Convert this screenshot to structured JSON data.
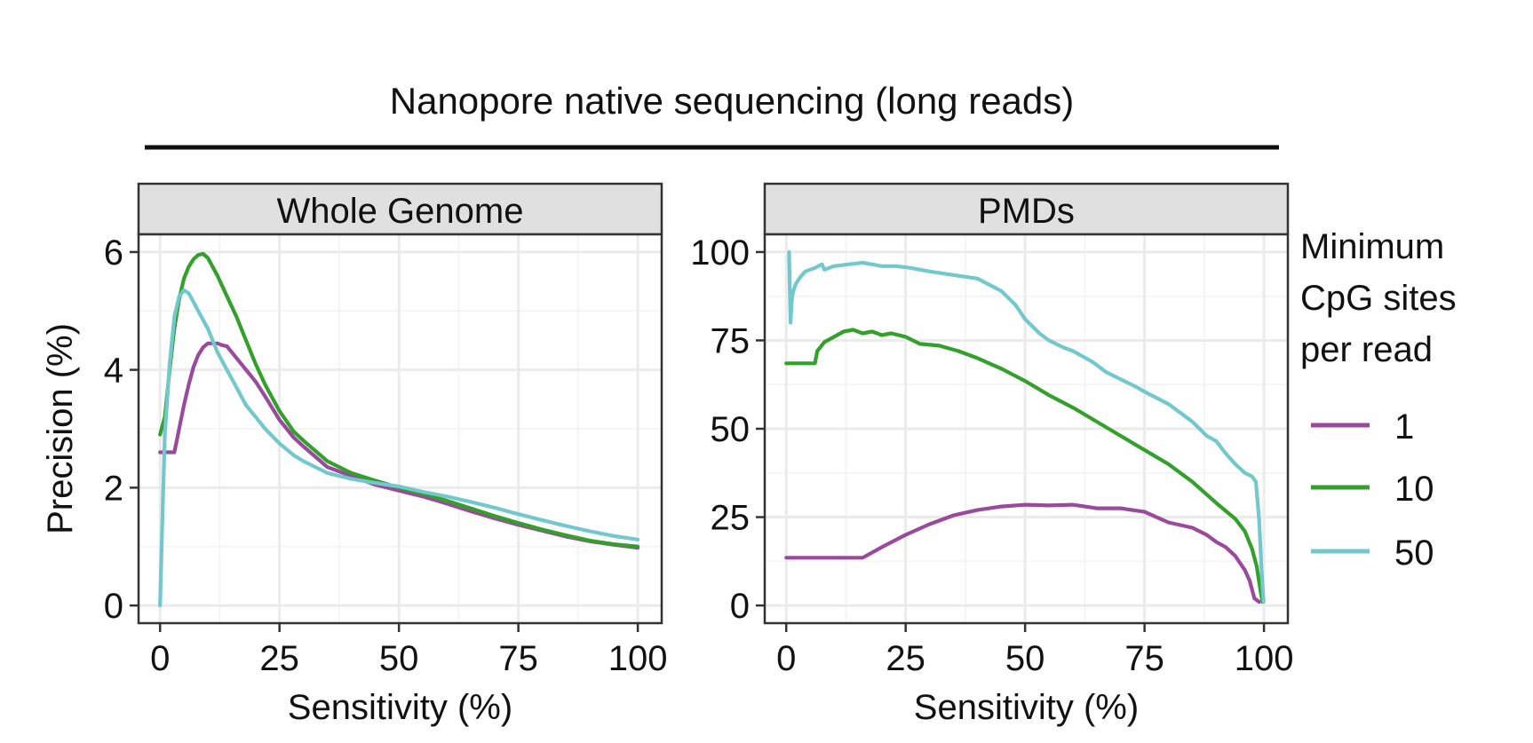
{
  "figure": {
    "supertitle": "Nanopore native sequencing (long reads)",
    "legend": {
      "title_lines": [
        "Minimum",
        "CpG sites",
        "per read"
      ],
      "items": [
        {
          "label": "1",
          "color": "#9a4a9c"
        },
        {
          "label": "10",
          "color": "#33a02c"
        },
        {
          "label": "50",
          "color": "#72c8cc"
        }
      ]
    }
  },
  "chart_data": [
    {
      "type": "line",
      "title": "Whole Genome",
      "xlabel": "Sensitivity (%)",
      "ylabel": "Precision (%)",
      "xlim": [
        -4.5,
        105
      ],
      "ylim": [
        -0.3,
        6.3
      ],
      "x_ticks": [
        0,
        25,
        50,
        75,
        100
      ],
      "x_tick_labels": [
        "0",
        "25",
        "50",
        "75",
        "100"
      ],
      "y_ticks": [
        0,
        2,
        4,
        6
      ],
      "y_tick_labels": [
        "0",
        "2",
        "4",
        "6"
      ],
      "grid": true,
      "series": [
        {
          "name": "1",
          "color": "#9a4a9c",
          "x": [
            0,
            1,
            2,
            3,
            4,
            5,
            6,
            7,
            8,
            9,
            10,
            11,
            12,
            13,
            14,
            15,
            16,
            18,
            20,
            22,
            25,
            28,
            30,
            35,
            40,
            45,
            50,
            55,
            60,
            65,
            70,
            75,
            80,
            85,
            90,
            95,
            100
          ],
          "y": [
            2.6,
            2.6,
            2.6,
            2.6,
            3.0,
            3.4,
            3.75,
            4.05,
            4.25,
            4.38,
            4.45,
            4.45,
            4.45,
            4.42,
            4.4,
            4.3,
            4.2,
            4.0,
            3.8,
            3.55,
            3.15,
            2.85,
            2.7,
            2.35,
            2.2,
            2.05,
            1.95,
            1.85,
            1.73,
            1.6,
            1.48,
            1.37,
            1.27,
            1.17,
            1.09,
            1.03,
            0.98
          ]
        },
        {
          "name": "10",
          "color": "#33a02c",
          "x": [
            0,
            1,
            2,
            3,
            4,
            5,
            6,
            7,
            8,
            9,
            10,
            11,
            12,
            14,
            16,
            18,
            20,
            22,
            25,
            28,
            30,
            35,
            40,
            45,
            50,
            55,
            60,
            65,
            70,
            75,
            80,
            85,
            90,
            95,
            100
          ],
          "y": [
            2.9,
            3.2,
            4.0,
            4.7,
            5.2,
            5.55,
            5.75,
            5.88,
            5.95,
            5.97,
            5.9,
            5.75,
            5.6,
            5.25,
            4.9,
            4.5,
            4.1,
            3.75,
            3.3,
            2.95,
            2.8,
            2.45,
            2.25,
            2.12,
            2.0,
            1.9,
            1.78,
            1.65,
            1.52,
            1.4,
            1.29,
            1.19,
            1.1,
            1.04,
            1.0
          ]
        },
        {
          "name": "50",
          "color": "#72c8cc",
          "x": [
            0,
            0.5,
            1,
            2,
            3,
            4,
            5,
            6,
            7,
            8,
            9,
            10,
            11,
            12,
            14,
            16,
            18,
            20,
            22,
            25,
            28,
            30,
            35,
            40,
            45,
            50,
            55,
            60,
            65,
            70,
            75,
            80,
            85,
            90,
            95,
            100
          ],
          "y": [
            0,
            1.5,
            2.9,
            4.1,
            4.9,
            5.25,
            5.35,
            5.3,
            5.15,
            5.0,
            4.85,
            4.7,
            4.5,
            4.3,
            4.0,
            3.7,
            3.4,
            3.2,
            3.0,
            2.75,
            2.55,
            2.45,
            2.25,
            2.15,
            2.08,
            2.02,
            1.93,
            1.85,
            1.76,
            1.66,
            1.55,
            1.45,
            1.35,
            1.26,
            1.18,
            1.12
          ]
        }
      ]
    },
    {
      "type": "line",
      "title": "PMDs",
      "xlabel": "Sensitivity (%)",
      "ylabel": "",
      "xlim": [
        -4.5,
        105
      ],
      "ylim": [
        -5,
        105
      ],
      "x_ticks": [
        0,
        25,
        50,
        75,
        100
      ],
      "x_tick_labels": [
        "0",
        "25",
        "50",
        "75",
        "100"
      ],
      "y_ticks": [
        0,
        25,
        50,
        75,
        100
      ],
      "y_tick_labels": [
        "0",
        "25",
        "50",
        "75",
        "100"
      ],
      "grid": true,
      "series": [
        {
          "name": "1",
          "color": "#9a4a9c",
          "x": [
            0,
            5,
            10,
            15,
            16,
            20,
            25,
            30,
            35,
            40,
            45,
            50,
            55,
            60,
            65,
            70,
            75,
            80,
            85,
            88,
            90,
            92,
            94,
            96,
            97,
            98,
            99
          ],
          "y": [
            13.5,
            13.5,
            13.5,
            13.5,
            13.5,
            16.5,
            20.0,
            23.0,
            25.5,
            27.0,
            28.0,
            28.5,
            28.3,
            28.5,
            27.5,
            27.5,
            26.5,
            23.5,
            22.0,
            20.0,
            18.0,
            16.5,
            14.0,
            10.0,
            7.0,
            2.0,
            1.0
          ]
        },
        {
          "name": "10",
          "color": "#33a02c",
          "x": [
            0,
            6,
            6.5,
            8,
            10,
            12,
            14,
            16,
            18,
            20,
            22,
            25,
            28,
            32,
            36,
            40,
            45,
            50,
            55,
            60,
            65,
            70,
            75,
            80,
            85,
            90,
            94,
            96,
            97.5,
            98.5,
            99.3,
            99.7
          ],
          "y": [
            68.5,
            68.5,
            72.0,
            74.5,
            76.0,
            77.5,
            78.0,
            77.0,
            77.5,
            76.5,
            77.0,
            76.0,
            74.0,
            73.5,
            72.0,
            70.0,
            67.0,
            63.5,
            59.5,
            56.0,
            52.0,
            48.0,
            44.0,
            40.0,
            35.0,
            29.0,
            24.5,
            21.0,
            16.0,
            11.0,
            4.0,
            1.0
          ]
        },
        {
          "name": "50",
          "color": "#72c8cc",
          "x": [
            0.6,
            0.9,
            1.2,
            1.5,
            2.0,
            3.0,
            4.0,
            6.0,
            7.5,
            8.0,
            10.0,
            13.0,
            16.0,
            18.0,
            20.0,
            23.0,
            26.0,
            30.0,
            35.0,
            40.0,
            45.0,
            48.0,
            50.0,
            53.0,
            55.0,
            58.0,
            60.0,
            64.0,
            67.0,
            70.0,
            73.0,
            75.0,
            80.0,
            85.0,
            88.0,
            90.0,
            92.0,
            94.0,
            96.0,
            97.5,
            98.3,
            99.0,
            99.5,
            99.9
          ],
          "y": [
            100.0,
            80.0,
            87.0,
            89.0,
            91.0,
            93.0,
            94.5,
            95.5,
            96.5,
            95.0,
            96.0,
            96.5,
            97.0,
            96.5,
            96.0,
            96.0,
            95.5,
            94.5,
            93.5,
            92.5,
            89.0,
            85.0,
            81.0,
            77.0,
            75.0,
            73.0,
            72.0,
            69.0,
            66.0,
            64.0,
            62.0,
            60.5,
            57.0,
            52.0,
            48.0,
            46.5,
            43.0,
            40.0,
            37.5,
            36.5,
            35.0,
            24.0,
            10.0,
            1.0
          ]
        }
      ]
    }
  ]
}
